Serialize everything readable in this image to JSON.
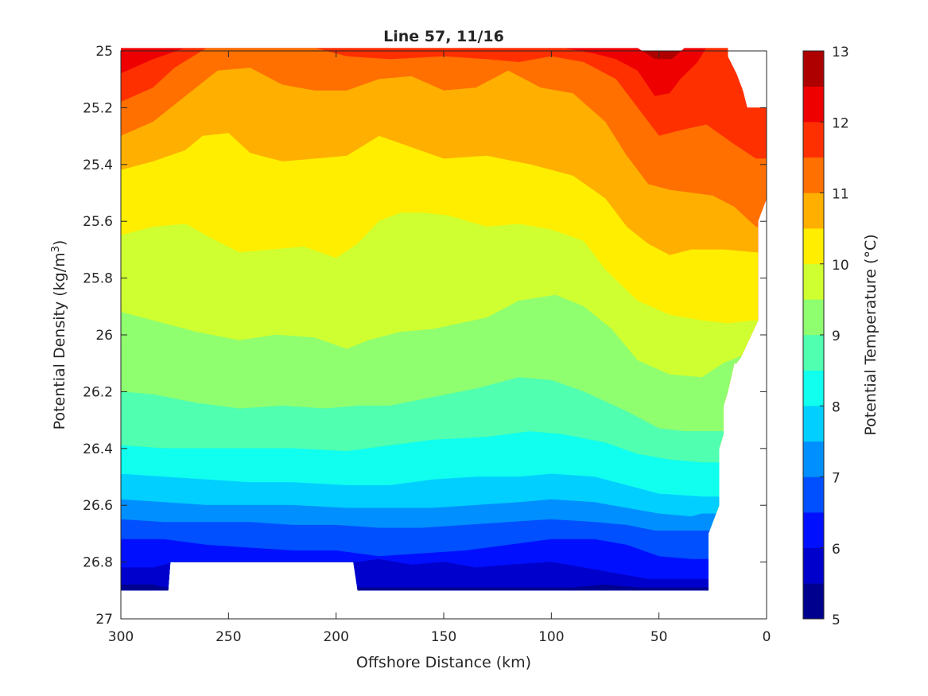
{
  "chart_data": {
    "type": "filled-contour",
    "title": "Line 57, 11/16",
    "xlabel": "Offshore Distance (km)",
    "ylabel_main": "Potential Density (kg/m",
    "ylabel_sup": "3",
    "ylabel_end": ")",
    "colorbar_label": "Potential Temperature (°C)",
    "x_range": [
      300,
      0
    ],
    "x_reversed": true,
    "y_range": [
      25,
      27
    ],
    "y_reversed": true,
    "x_ticks": [
      300,
      250,
      200,
      150,
      100,
      50,
      0
    ],
    "x_tick_labels": [
      "300",
      "250",
      "200",
      "150",
      "100",
      "50",
      "0"
    ],
    "y_ticks": [
      25,
      25.2,
      25.4,
      25.6,
      25.8,
      26,
      26.2,
      26.4,
      26.6,
      26.8,
      27
    ],
    "y_tick_labels": [
      "25",
      "25.2",
      "25.4",
      "25.6",
      "25.8",
      "26",
      "26.2",
      "26.4",
      "26.6",
      "26.8",
      "27"
    ],
    "colorbar_ticks": [
      5,
      6,
      7,
      8,
      9,
      10,
      11,
      12,
      13
    ],
    "colorbar_tick_labels": [
      "5",
      "6",
      "7",
      "8",
      "9",
      "10",
      "11",
      "12",
      "13"
    ],
    "colorbar_range": [
      5,
      13
    ],
    "contour_levels": [
      5,
      5.5,
      6,
      6.5,
      7,
      7.5,
      8,
      8.5,
      9,
      9.5,
      10,
      10.5,
      11,
      11.5,
      12,
      12.5,
      13
    ],
    "level_colors": [
      "#00008f",
      "#0000cc",
      "#0010ff",
      "#0050ff",
      "#008fff",
      "#00cfff",
      "#10ffef",
      "#50ffaf",
      "#8fff70",
      "#cfff30",
      "#ffee00",
      "#ffaf00",
      "#ff7000",
      "#ff3000",
      "#ef0000",
      "#af0000"
    ],
    "grid": false,
    "isopleths": [
      {
        "level": 12.5,
        "points": [
          [
            60,
            24.99
          ],
          [
            52,
            25.03
          ],
          [
            44,
            25.03
          ],
          [
            38,
            24.99
          ]
        ]
      },
      {
        "level": 12,
        "points": [
          [
            300,
            25.08
          ],
          [
            285,
            25.03
          ],
          [
            270,
            24.99
          ],
          [
            195,
            24.99
          ],
          [
            125,
            24.99
          ],
          [
            95,
            24.99
          ],
          [
            80,
            25.01
          ],
          [
            70,
            25.03
          ],
          [
            60,
            25.07
          ],
          [
            52,
            25.16
          ],
          [
            45,
            25.15
          ],
          [
            40,
            25.1
          ],
          [
            32,
            25.04
          ],
          [
            28,
            24.99
          ]
        ]
      },
      {
        "level": 11.5,
        "points": [
          [
            300,
            25.18
          ],
          [
            285,
            25.13
          ],
          [
            275,
            25.06
          ],
          [
            260,
            24.99
          ],
          [
            210,
            24.99
          ],
          [
            195,
            25.02
          ],
          [
            175,
            25.03
          ],
          [
            150,
            25.02
          ],
          [
            130,
            25.03
          ],
          [
            115,
            25.04
          ],
          [
            100,
            25.02
          ],
          [
            85,
            25.04
          ],
          [
            70,
            25.1
          ],
          [
            60,
            25.2
          ],
          [
            50,
            25.3
          ],
          [
            40,
            25.28
          ],
          [
            28,
            25.26
          ],
          [
            15,
            25.33
          ],
          [
            5,
            25.38
          ],
          [
            0,
            25.38
          ]
        ]
      },
      {
        "level": 11,
        "points": [
          [
            300,
            25.3
          ],
          [
            285,
            25.25
          ],
          [
            270,
            25.16
          ],
          [
            255,
            25.07
          ],
          [
            240,
            25.06
          ],
          [
            225,
            25.12
          ],
          [
            210,
            25.14
          ],
          [
            195,
            25.14
          ],
          [
            180,
            25.1
          ],
          [
            165,
            25.09
          ],
          [
            150,
            25.14
          ],
          [
            135,
            25.13
          ],
          [
            120,
            25.07
          ],
          [
            105,
            25.13
          ],
          [
            90,
            25.15
          ],
          [
            75,
            25.25
          ],
          [
            65,
            25.37
          ],
          [
            55,
            25.47
          ],
          [
            45,
            25.49
          ],
          [
            35,
            25.5
          ],
          [
            25,
            25.51
          ],
          [
            15,
            25.55
          ],
          [
            5,
            25.62
          ],
          [
            0,
            25.63
          ]
        ]
      },
      {
        "level": 10.5,
        "points": [
          [
            300,
            25.42
          ],
          [
            285,
            25.39
          ],
          [
            270,
            25.35
          ],
          [
            262,
            25.3
          ],
          [
            250,
            25.29
          ],
          [
            240,
            25.36
          ],
          [
            225,
            25.39
          ],
          [
            210,
            25.38
          ],
          [
            195,
            25.37
          ],
          [
            180,
            25.3
          ],
          [
            165,
            25.34
          ],
          [
            150,
            25.38
          ],
          [
            130,
            25.37
          ],
          [
            110,
            25.4
          ],
          [
            90,
            25.44
          ],
          [
            75,
            25.52
          ],
          [
            65,
            25.62
          ],
          [
            55,
            25.68
          ],
          [
            45,
            25.72
          ],
          [
            35,
            25.7
          ],
          [
            20,
            25.7
          ],
          [
            5,
            25.71
          ]
        ]
      },
      {
        "level": 10,
        "points": [
          [
            300,
            25.65
          ],
          [
            285,
            25.62
          ],
          [
            270,
            25.61
          ],
          [
            258,
            25.66
          ],
          [
            245,
            25.71
          ],
          [
            230,
            25.7
          ],
          [
            215,
            25.69
          ],
          [
            200,
            25.73
          ],
          [
            190,
            25.68
          ],
          [
            180,
            25.6
          ],
          [
            170,
            25.57
          ],
          [
            160,
            25.57
          ],
          [
            148,
            25.58
          ],
          [
            130,
            25.62
          ],
          [
            115,
            25.61
          ],
          [
            100,
            25.63
          ],
          [
            85,
            25.67
          ],
          [
            75,
            25.77
          ],
          [
            60,
            25.88
          ],
          [
            45,
            25.93
          ],
          [
            30,
            25.95
          ],
          [
            18,
            25.96
          ],
          [
            6,
            25.95
          ]
        ]
      },
      {
        "level": 9.5,
        "points": [
          [
            300,
            25.92
          ],
          [
            285,
            25.95
          ],
          [
            265,
            25.99
          ],
          [
            245,
            26.02
          ],
          [
            228,
            26.0
          ],
          [
            210,
            26.01
          ],
          [
            195,
            26.05
          ],
          [
            185,
            26.02
          ],
          [
            170,
            25.99
          ],
          [
            155,
            25.98
          ],
          [
            130,
            25.94
          ],
          [
            115,
            25.88
          ],
          [
            98,
            25.86
          ],
          [
            85,
            25.9
          ],
          [
            72,
            25.98
          ],
          [
            60,
            26.09
          ],
          [
            45,
            26.14
          ],
          [
            30,
            26.15
          ],
          [
            20,
            26.1
          ],
          [
            10,
            26.07
          ]
        ]
      },
      {
        "level": 9,
        "points": [
          [
            300,
            26.2
          ],
          [
            285,
            26.21
          ],
          [
            265,
            26.24
          ],
          [
            245,
            26.26
          ],
          [
            225,
            26.25
          ],
          [
            205,
            26.26
          ],
          [
            190,
            26.25
          ],
          [
            175,
            26.25
          ],
          [
            155,
            26.22
          ],
          [
            135,
            26.19
          ],
          [
            115,
            26.15
          ],
          [
            100,
            26.16
          ],
          [
            85,
            26.2
          ],
          [
            65,
            26.27
          ],
          [
            50,
            26.33
          ],
          [
            38,
            26.34
          ],
          [
            25,
            26.34
          ]
        ]
      },
      {
        "level": 8.5,
        "points": [
          [
            300,
            26.39
          ],
          [
            280,
            26.4
          ],
          [
            260,
            26.4
          ],
          [
            240,
            26.4
          ],
          [
            220,
            26.4
          ],
          [
            195,
            26.41
          ],
          [
            175,
            26.39
          ],
          [
            155,
            26.37
          ],
          [
            130,
            26.36
          ],
          [
            110,
            26.34
          ],
          [
            95,
            26.35
          ],
          [
            75,
            26.38
          ],
          [
            60,
            26.42
          ],
          [
            45,
            26.44
          ],
          [
            30,
            26.45
          ]
        ]
      },
      {
        "level": 8,
        "points": [
          [
            300,
            26.49
          ],
          [
            280,
            26.5
          ],
          [
            260,
            26.51
          ],
          [
            240,
            26.52
          ],
          [
            220,
            26.52
          ],
          [
            195,
            26.53
          ],
          [
            175,
            26.53
          ],
          [
            155,
            26.51
          ],
          [
            135,
            26.5
          ],
          [
            115,
            26.5
          ],
          [
            100,
            26.49
          ],
          [
            80,
            26.5
          ],
          [
            65,
            26.53
          ],
          [
            50,
            26.56
          ],
          [
            30,
            26.57
          ]
        ]
      },
      {
        "level": 7.5,
        "points": [
          [
            300,
            26.58
          ],
          [
            280,
            26.59
          ],
          [
            260,
            26.6
          ],
          [
            240,
            26.6
          ],
          [
            220,
            26.6
          ],
          [
            195,
            26.61
          ],
          [
            175,
            26.61
          ],
          [
            155,
            26.61
          ],
          [
            135,
            26.6
          ],
          [
            115,
            26.59
          ],
          [
            100,
            26.58
          ],
          [
            80,
            26.59
          ],
          [
            65,
            26.61
          ],
          [
            50,
            26.63
          ],
          [
            35,
            26.64
          ],
          [
            30,
            26.63
          ]
        ]
      },
      {
        "level": 7,
        "points": [
          [
            300,
            26.65
          ],
          [
            280,
            26.66
          ],
          [
            260,
            26.66
          ],
          [
            240,
            26.66
          ],
          [
            220,
            26.67
          ],
          [
            200,
            26.67
          ],
          [
            180,
            26.68
          ],
          [
            160,
            26.68
          ],
          [
            140,
            26.67
          ],
          [
            120,
            26.66
          ],
          [
            100,
            26.65
          ],
          [
            80,
            26.66
          ],
          [
            65,
            26.67
          ],
          [
            52,
            26.69
          ],
          [
            35,
            26.69
          ]
        ]
      },
      {
        "level": 6.5,
        "points": [
          [
            300,
            26.72
          ],
          [
            280,
            26.72
          ],
          [
            260,
            26.74
          ],
          [
            240,
            26.75
          ],
          [
            220,
            26.76
          ],
          [
            200,
            26.76
          ],
          [
            180,
            26.78
          ],
          [
            160,
            26.77
          ],
          [
            140,
            26.76
          ],
          [
            120,
            26.74
          ],
          [
            100,
            26.72
          ],
          [
            80,
            26.72
          ],
          [
            65,
            26.74
          ],
          [
            50,
            26.78
          ],
          [
            35,
            26.79
          ]
        ]
      },
      {
        "level": 6,
        "points": [
          [
            300,
            26.82
          ],
          [
            285,
            26.82
          ],
          [
            275,
            26.8
          ],
          [
            190,
            26.8
          ],
          [
            180,
            26.79
          ],
          [
            165,
            26.81
          ],
          [
            150,
            26.8
          ],
          [
            135,
            26.82
          ],
          [
            120,
            26.81
          ],
          [
            100,
            26.8
          ],
          [
            85,
            26.82
          ],
          [
            70,
            26.84
          ],
          [
            55,
            26.86
          ],
          [
            35,
            26.86
          ]
        ]
      },
      {
        "level": 5.5,
        "points": [
          [
            300,
            26.88
          ],
          [
            285,
            26.88
          ],
          [
            280,
            26.89
          ],
          [
            188,
            26.89
          ],
          [
            170,
            26.89
          ],
          [
            150,
            26.89
          ],
          [
            130,
            26.89
          ],
          [
            110,
            26.89
          ],
          [
            90,
            26.89
          ],
          [
            75,
            26.88
          ],
          [
            60,
            26.89
          ],
          [
            45,
            26.89
          ],
          [
            35,
            26.89
          ]
        ]
      }
    ],
    "data_mask": {
      "top_right_edge": [
        [
          24.99,
          18
        ],
        [
          25.02,
          18
        ],
        [
          25.08,
          14
        ],
        [
          25.14,
          11
        ],
        [
          25.2,
          9
        ],
        [
          25.2,
          0
        ]
      ],
      "right_edge": [
        [
          25.2,
          0
        ],
        [
          25.52,
          0
        ],
        [
          25.6,
          4
        ],
        [
          25.78,
          4
        ],
        [
          25.95,
          4
        ],
        [
          26.08,
          12
        ],
        [
          26.1,
          14
        ],
        [
          26.1,
          15
        ],
        [
          26.2,
          18
        ],
        [
          26.25,
          20
        ],
        [
          26.35,
          20
        ],
        [
          26.4,
          22
        ],
        [
          26.6,
          22
        ],
        [
          26.7,
          27
        ],
        [
          26.9,
          27
        ]
      ],
      "bottom_edge": [
        [
          35,
          26.9
        ],
        [
          190,
          26.9
        ],
        [
          192,
          26.8
        ],
        [
          277,
          26.8
        ],
        [
          278,
          26.9
        ],
        [
          300,
          26.9
        ]
      ]
    }
  }
}
